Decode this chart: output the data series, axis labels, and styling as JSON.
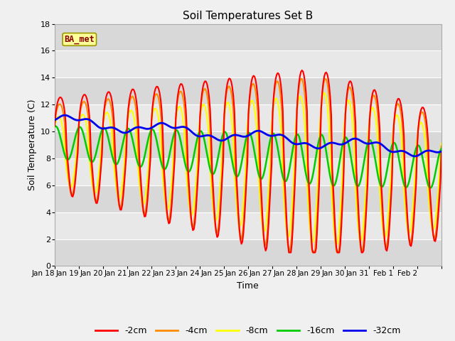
{
  "title": "Soil Temperatures Set B",
  "xlabel": "Time",
  "ylabel": "Soil Temperature (C)",
  "annotation": "BA_met",
  "ylim": [
    0,
    18
  ],
  "colors": {
    "-2cm": "#ff0000",
    "-4cm": "#ff8c00",
    "-8cm": "#ffff00",
    "-16cm": "#00cc00",
    "-32cm": "#0000ee"
  },
  "day_labels": [
    "Jan 18",
    "Jan 19",
    "Jan 20",
    "Jan 21",
    "Jan 22",
    "Jan 23",
    "Jan 24",
    "Jan 25",
    "Jan 26",
    "Jan 27",
    "Jan 28",
    "Jan 29",
    "Jan 30",
    "Jan 31",
    "Feb 1",
    "Feb 2"
  ],
  "yticks": [
    0,
    2,
    4,
    6,
    8,
    10,
    12,
    14,
    16,
    18
  ],
  "n_days": 16,
  "n_pts": 384,
  "bg_light": "#e8e8e8",
  "bg_dark": "#d8d8d8",
  "fig_bg": "#f0f0f0"
}
